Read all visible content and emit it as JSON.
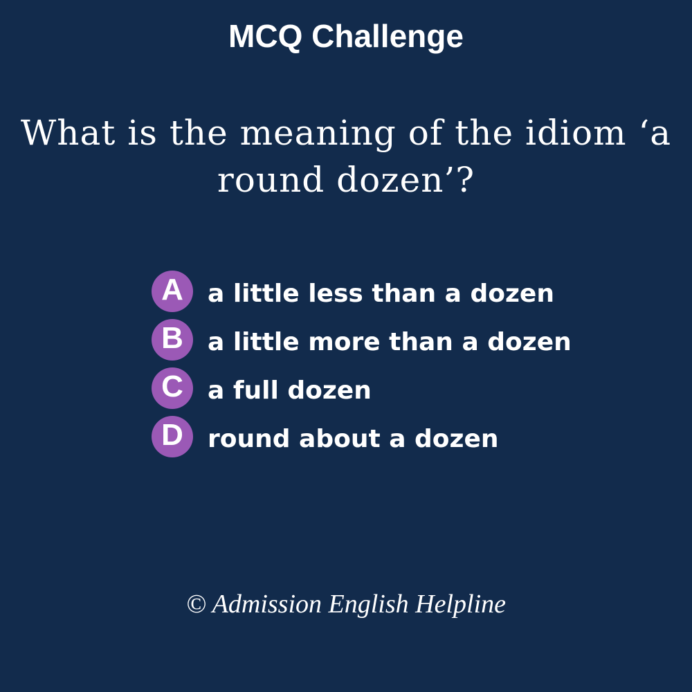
{
  "header": {
    "title": "MCQ Challenge"
  },
  "question": {
    "text": "What is the meaning of the idiom ‘a round dozen’?"
  },
  "options": [
    {
      "letter": "A",
      "text": "a little less than a dozen"
    },
    {
      "letter": "B",
      "text": "a little more than a dozen"
    },
    {
      "letter": "C",
      "text": "a full dozen"
    },
    {
      "letter": "D",
      "text": "round about a dozen"
    }
  ],
  "footer": {
    "copyright": "© Admission English Helpline"
  },
  "colors": {
    "background": "#122b4c",
    "badge": "#9b59b6",
    "text": "#ffffff"
  }
}
